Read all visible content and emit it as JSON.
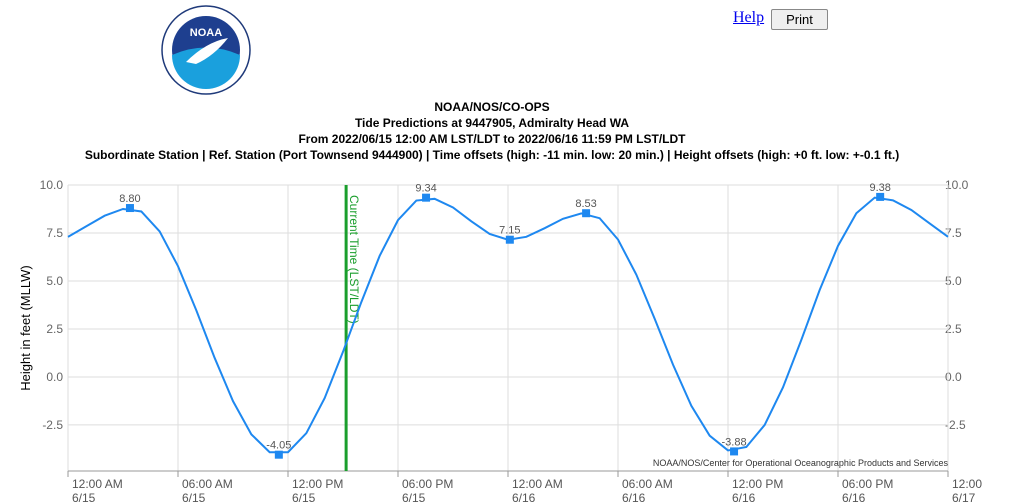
{
  "header": {
    "logo_text": "NOAA",
    "help": "Help",
    "print": "Print"
  },
  "chart_data": {
    "type": "line",
    "title": "NOAA/NOS/CO-OPS",
    "subtitle": [
      "Tide Predictions at 9447905, Admiralty Head WA",
      "From 2022/06/15 12:00 AM LST/LDT to 2022/06/16 11:59 PM LST/LDT",
      "Subordinate Station | Ref. Station (Port Townsend 9444900) | Time offsets (high: -11 min. low: 20 min.) | Height offsets (high: +0 ft. low: +-0.1 ft.)"
    ],
    "y_label": "Height in feet (MLLW)",
    "credit": "NOAA/NOS/Center for Operational Oceanographic Products and Services",
    "current_time": {
      "label": "Current Time (LST/LDT)",
      "x": 15.17,
      "color": "#1a9e2c"
    },
    "xlim": [
      0,
      48
    ],
    "ylim": [
      -4.9,
      10.0
    ],
    "xticks": [
      {
        "value": 0,
        "label": [
          "12:00 AM",
          "6/15"
        ]
      },
      {
        "value": 6,
        "label": [
          "06:00 AM",
          "6/15"
        ]
      },
      {
        "value": 12,
        "label": [
          "12:00 PM",
          "6/15"
        ]
      },
      {
        "value": 18,
        "label": [
          "06:00 PM",
          "6/15"
        ]
      },
      {
        "value": 24,
        "label": [
          "12:00 AM",
          "6/16"
        ]
      },
      {
        "value": 30,
        "label": [
          "06:00 AM",
          "6/16"
        ]
      },
      {
        "value": 36,
        "label": [
          "12:00 PM",
          "6/16"
        ]
      },
      {
        "value": 42,
        "label": [
          "06:00 PM",
          "6/16"
        ]
      },
      {
        "value": 48,
        "label": [
          "12:00",
          "6/17"
        ]
      }
    ],
    "yticks": [
      {
        "value": 10,
        "label": "10.0"
      },
      {
        "value": 7.5,
        "label": "7.5"
      },
      {
        "value": 5,
        "label": "5.0"
      },
      {
        "value": 2.5,
        "label": "2.5"
      },
      {
        "value": 0,
        "label": "0.0"
      },
      {
        "value": -2.5,
        "label": "-2.5"
      }
    ],
    "grid": true,
    "series": [
      {
        "color": "#1e88f0",
        "x": [
          0,
          1,
          2,
          3,
          4,
          5,
          6,
          7,
          8,
          9,
          10,
          11,
          12,
          13,
          14,
          15,
          16,
          17,
          18,
          19,
          20,
          21,
          22,
          23,
          24,
          25,
          26,
          27,
          28,
          29,
          30,
          31,
          32,
          33,
          34,
          35,
          36,
          37,
          38,
          39,
          40,
          41,
          42,
          43,
          44,
          45,
          46,
          47,
          48
        ],
        "values": [
          7.3,
          7.85,
          8.4,
          8.75,
          8.62,
          7.58,
          5.77,
          3.47,
          0.99,
          -1.26,
          -2.99,
          -3.92,
          -3.92,
          -2.93,
          -1.1,
          1.31,
          3.9,
          6.31,
          8.17,
          9.19,
          9.28,
          8.83,
          8.11,
          7.45,
          7.15,
          7.3,
          7.75,
          8.24,
          8.52,
          8.27,
          7.16,
          5.33,
          3.03,
          0.64,
          -1.5,
          -3.06,
          -3.83,
          -3.65,
          -2.5,
          -0.54,
          1.93,
          4.53,
          6.83,
          8.53,
          9.34,
          9.2,
          8.7,
          8.0,
          7.3
        ]
      },
      {
        "color": "#1e88f0",
        "markers": true,
        "x": [
          3.38,
          11.5,
          19.53,
          24.1,
          28.26,
          36.33,
          44.3
        ],
        "values": [
          8.8,
          -4.05,
          9.34,
          7.15,
          8.53,
          -3.88,
          9.38
        ],
        "value_labels": [
          "8.80",
          "-4.05",
          "9.34",
          "7.15",
          "8.53",
          "-3.88",
          "9.38"
        ]
      }
    ]
  }
}
